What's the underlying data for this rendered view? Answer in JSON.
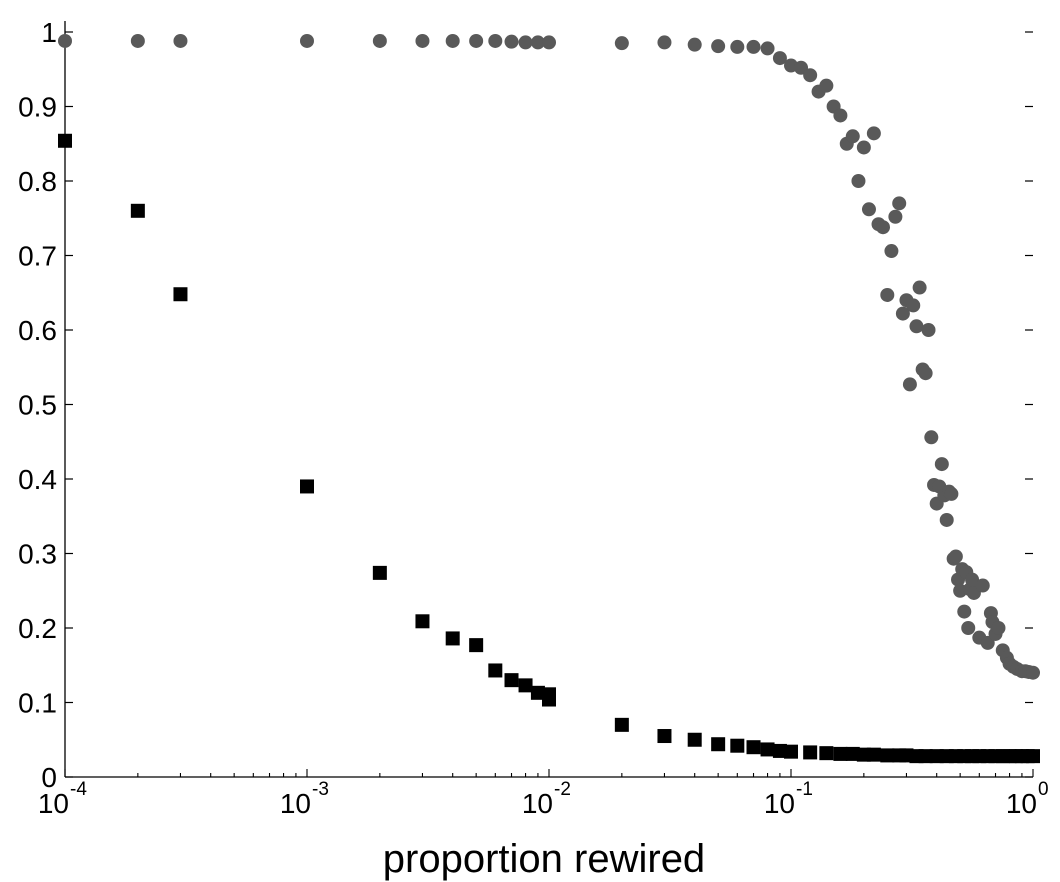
{
  "chart_data": {
    "type": "scatter",
    "title": "",
    "xlabel": "proportion rewired",
    "ylabel": "",
    "xscale": "log",
    "xlim": [
      0.0001,
      1
    ],
    "ylim": [
      0,
      1
    ],
    "grid": false,
    "legend": "none",
    "x_ticks": [
      {
        "base": "10",
        "exp": "-4"
      },
      {
        "base": "10",
        "exp": "-3"
      },
      {
        "base": "10",
        "exp": "-2"
      },
      {
        "base": "10",
        "exp": "-1"
      },
      {
        "base": "10",
        "exp": "0"
      }
    ],
    "y_ticks": [
      "0",
      "0.1",
      "0.2",
      "0.3",
      "0.4",
      "0.5",
      "0.6",
      "0.7",
      "0.8",
      "0.9",
      "1"
    ],
    "series": [
      {
        "marker": "circle",
        "color": "#595959",
        "points": [
          [
            0.0001,
            0.988
          ],
          [
            0.0002,
            0.988
          ],
          [
            0.0003,
            0.988
          ],
          [
            0.001,
            0.988
          ],
          [
            0.002,
            0.988
          ],
          [
            0.003,
            0.988
          ],
          [
            0.004,
            0.988
          ],
          [
            0.005,
            0.988
          ],
          [
            0.006,
            0.988
          ],
          [
            0.007,
            0.987
          ],
          [
            0.008,
            0.986
          ],
          [
            0.009,
            0.986
          ],
          [
            0.01,
            0.986
          ],
          [
            0.02,
            0.985
          ],
          [
            0.03,
            0.986
          ],
          [
            0.04,
            0.983
          ],
          [
            0.05,
            0.981
          ],
          [
            0.06,
            0.98
          ],
          [
            0.07,
            0.98
          ],
          [
            0.08,
            0.978
          ],
          [
            0.09,
            0.965
          ],
          [
            0.1,
            0.955
          ],
          [
            0.11,
            0.952
          ],
          [
            0.12,
            0.942
          ],
          [
            0.13,
            0.92
          ],
          [
            0.14,
            0.928
          ],
          [
            0.15,
            0.9
          ],
          [
            0.16,
            0.888
          ],
          [
            0.17,
            0.85
          ],
          [
            0.18,
            0.86
          ],
          [
            0.19,
            0.8
          ],
          [
            0.2,
            0.845
          ],
          [
            0.21,
            0.762
          ],
          [
            0.22,
            0.864
          ],
          [
            0.23,
            0.742
          ],
          [
            0.24,
            0.738
          ],
          [
            0.25,
            0.647
          ],
          [
            0.26,
            0.706
          ],
          [
            0.27,
            0.752
          ],
          [
            0.28,
            0.77
          ],
          [
            0.29,
            0.622
          ],
          [
            0.3,
            0.64
          ],
          [
            0.31,
            0.527
          ],
          [
            0.32,
            0.633
          ],
          [
            0.33,
            0.605
          ],
          [
            0.34,
            0.657
          ],
          [
            0.35,
            0.547
          ],
          [
            0.36,
            0.542
          ],
          [
            0.37,
            0.6
          ],
          [
            0.38,
            0.456
          ],
          [
            0.39,
            0.392
          ],
          [
            0.4,
            0.367
          ],
          [
            0.41,
            0.39
          ],
          [
            0.42,
            0.42
          ],
          [
            0.43,
            0.378
          ],
          [
            0.44,
            0.345
          ],
          [
            0.45,
            0.383
          ],
          [
            0.46,
            0.38
          ],
          [
            0.47,
            0.293
          ],
          [
            0.48,
            0.296
          ],
          [
            0.49,
            0.265
          ],
          [
            0.5,
            0.25
          ],
          [
            0.51,
            0.279
          ],
          [
            0.52,
            0.222
          ],
          [
            0.53,
            0.275
          ],
          [
            0.54,
            0.2
          ],
          [
            0.55,
            0.252
          ],
          [
            0.56,
            0.265
          ],
          [
            0.57,
            0.247
          ],
          [
            0.6,
            0.187
          ],
          [
            0.62,
            0.257
          ],
          [
            0.65,
            0.18
          ],
          [
            0.67,
            0.22
          ],
          [
            0.68,
            0.208
          ],
          [
            0.7,
            0.192
          ],
          [
            0.72,
            0.2
          ],
          [
            0.75,
            0.17
          ],
          [
            0.78,
            0.16
          ],
          [
            0.8,
            0.152
          ],
          [
            0.83,
            0.148
          ],
          [
            0.86,
            0.145
          ],
          [
            0.9,
            0.142
          ],
          [
            0.93,
            0.142
          ],
          [
            0.96,
            0.141
          ],
          [
            1.0,
            0.14
          ]
        ]
      },
      {
        "marker": "square",
        "color": "#000000",
        "points": [
          [
            0.0001,
            0.854
          ],
          [
            0.0002,
            0.76
          ],
          [
            0.0003,
            0.648
          ],
          [
            0.001,
            0.39
          ],
          [
            0.002,
            0.274
          ],
          [
            0.003,
            0.209
          ],
          [
            0.004,
            0.186
          ],
          [
            0.005,
            0.177
          ],
          [
            0.006,
            0.143
          ],
          [
            0.007,
            0.13
          ],
          [
            0.008,
            0.123
          ],
          [
            0.009,
            0.113
          ],
          [
            0.01,
            0.111
          ],
          [
            0.01,
            0.104
          ],
          [
            0.02,
            0.07
          ],
          [
            0.03,
            0.055
          ],
          [
            0.04,
            0.05
          ],
          [
            0.05,
            0.044
          ],
          [
            0.06,
            0.042
          ],
          [
            0.07,
            0.04
          ],
          [
            0.08,
            0.037
          ],
          [
            0.09,
            0.035
          ],
          [
            0.1,
            0.034
          ],
          [
            0.12,
            0.033
          ],
          [
            0.14,
            0.032
          ],
          [
            0.16,
            0.031
          ],
          [
            0.18,
            0.031
          ],
          [
            0.2,
            0.03
          ],
          [
            0.22,
            0.03
          ],
          [
            0.25,
            0.029
          ],
          [
            0.28,
            0.029
          ],
          [
            0.3,
            0.029
          ],
          [
            0.33,
            0.028
          ],
          [
            0.36,
            0.028
          ],
          [
            0.4,
            0.028
          ],
          [
            0.44,
            0.028
          ],
          [
            0.48,
            0.028
          ],
          [
            0.52,
            0.028
          ],
          [
            0.56,
            0.028
          ],
          [
            0.6,
            0.028
          ],
          [
            0.65,
            0.028
          ],
          [
            0.7,
            0.028
          ],
          [
            0.75,
            0.028
          ],
          [
            0.8,
            0.028
          ],
          [
            0.85,
            0.028
          ],
          [
            0.9,
            0.028
          ],
          [
            0.95,
            0.028
          ],
          [
            1.0,
            0.028
          ]
        ]
      }
    ]
  }
}
